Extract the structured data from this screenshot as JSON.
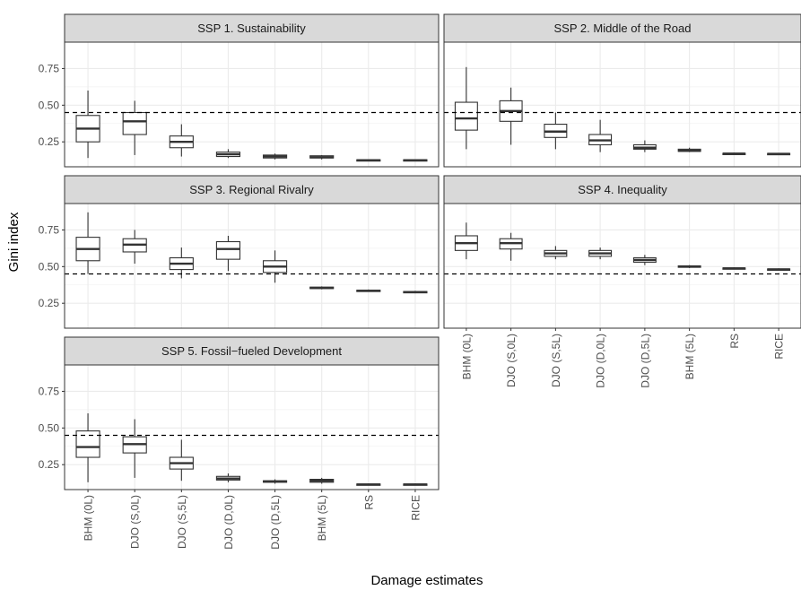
{
  "chart_data": {
    "type": "boxplot",
    "xlabel": "Damage estimates",
    "ylabel": "Gini index",
    "categories": [
      "BHM (0L)",
      "DJO (S,0L)",
      "DJO (S,5L)",
      "DJO (D,0L)",
      "DJO (D,5L)",
      "BHM (5L)",
      "RS",
      "RICE"
    ],
    "y_ticks": [
      "0.25",
      "0.50",
      "0.75"
    ],
    "ylim": [
      0.08,
      0.93
    ],
    "reference_line": 0.45,
    "grid": true,
    "panels": [
      {
        "title": "SSP 1. Sustainability",
        "boxes": [
          {
            "min": 0.14,
            "q1": 0.25,
            "median": 0.34,
            "q3": 0.43,
            "max": 0.6
          },
          {
            "min": 0.16,
            "q1": 0.3,
            "median": 0.39,
            "q3": 0.45,
            "max": 0.53
          },
          {
            "min": 0.15,
            "q1": 0.21,
            "median": 0.25,
            "q3": 0.29,
            "max": 0.37
          },
          {
            "min": 0.14,
            "q1": 0.15,
            "median": 0.165,
            "q3": 0.18,
            "max": 0.2
          },
          {
            "min": 0.13,
            "q1": 0.14,
            "median": 0.15,
            "q3": 0.16,
            "max": 0.17
          },
          {
            "min": 0.13,
            "q1": 0.14,
            "median": 0.145,
            "q3": 0.155,
            "max": 0.16
          },
          {
            "min": 0.118,
            "q1": 0.122,
            "median": 0.125,
            "q3": 0.128,
            "max": 0.132
          },
          {
            "min": 0.118,
            "q1": 0.122,
            "median": 0.125,
            "q3": 0.128,
            "max": 0.132
          }
        ]
      },
      {
        "title": "SSP 2. Middle of the Road",
        "boxes": [
          {
            "min": 0.2,
            "q1": 0.33,
            "median": 0.41,
            "q3": 0.52,
            "max": 0.76
          },
          {
            "min": 0.23,
            "q1": 0.39,
            "median": 0.46,
            "q3": 0.53,
            "max": 0.62
          },
          {
            "min": 0.2,
            "q1": 0.28,
            "median": 0.32,
            "q3": 0.37,
            "max": 0.45
          },
          {
            "min": 0.18,
            "q1": 0.23,
            "median": 0.26,
            "q3": 0.3,
            "max": 0.4
          },
          {
            "min": 0.18,
            "q1": 0.2,
            "median": 0.21,
            "q3": 0.23,
            "max": 0.26
          },
          {
            "min": 0.18,
            "q1": 0.185,
            "median": 0.19,
            "q3": 0.2,
            "max": 0.21
          },
          {
            "min": 0.165,
            "q1": 0.168,
            "median": 0.17,
            "q3": 0.172,
            "max": 0.176
          },
          {
            "min": 0.163,
            "q1": 0.166,
            "median": 0.168,
            "q3": 0.171,
            "max": 0.175
          }
        ]
      },
      {
        "title": "SSP 3. Regional Rivalry",
        "boxes": [
          {
            "min": 0.45,
            "q1": 0.54,
            "median": 0.62,
            "q3": 0.7,
            "max": 0.87
          },
          {
            "min": 0.52,
            "q1": 0.6,
            "median": 0.65,
            "q3": 0.69,
            "max": 0.75
          },
          {
            "min": 0.42,
            "q1": 0.48,
            "median": 0.52,
            "q3": 0.56,
            "max": 0.63
          },
          {
            "min": 0.47,
            "q1": 0.55,
            "median": 0.62,
            "q3": 0.67,
            "max": 0.71
          },
          {
            "min": 0.39,
            "q1": 0.46,
            "median": 0.5,
            "q3": 0.54,
            "max": 0.61
          },
          {
            "min": 0.345,
            "q1": 0.35,
            "median": 0.355,
            "q3": 0.36,
            "max": 0.365
          },
          {
            "min": 0.328,
            "q1": 0.332,
            "median": 0.335,
            "q3": 0.339,
            "max": 0.344
          },
          {
            "min": 0.318,
            "q1": 0.322,
            "median": 0.326,
            "q3": 0.33,
            "max": 0.335
          }
        ]
      },
      {
        "title": "SSP 4. Inequality",
        "boxes": [
          {
            "min": 0.55,
            "q1": 0.61,
            "median": 0.66,
            "q3": 0.71,
            "max": 0.8
          },
          {
            "min": 0.54,
            "q1": 0.62,
            "median": 0.66,
            "q3": 0.69,
            "max": 0.73
          },
          {
            "min": 0.55,
            "q1": 0.57,
            "median": 0.59,
            "q3": 0.61,
            "max": 0.64
          },
          {
            "min": 0.55,
            "q1": 0.57,
            "median": 0.59,
            "q3": 0.61,
            "max": 0.63
          },
          {
            "min": 0.51,
            "q1": 0.53,
            "median": 0.545,
            "q3": 0.56,
            "max": 0.58
          },
          {
            "min": 0.49,
            "q1": 0.495,
            "median": 0.5,
            "q3": 0.505,
            "max": 0.51
          },
          {
            "min": 0.482,
            "q1": 0.485,
            "median": 0.488,
            "q3": 0.491,
            "max": 0.495
          },
          {
            "min": 0.475,
            "q1": 0.478,
            "median": 0.481,
            "q3": 0.484,
            "max": 0.488
          }
        ]
      },
      {
        "title": "SSP 5. Fossil−fueled Development",
        "boxes": [
          {
            "min": 0.13,
            "q1": 0.3,
            "median": 0.37,
            "q3": 0.48,
            "max": 0.6
          },
          {
            "min": 0.16,
            "q1": 0.33,
            "median": 0.39,
            "q3": 0.44,
            "max": 0.56
          },
          {
            "min": 0.14,
            "q1": 0.22,
            "median": 0.26,
            "q3": 0.3,
            "max": 0.42
          },
          {
            "min": 0.13,
            "q1": 0.145,
            "median": 0.155,
            "q3": 0.17,
            "max": 0.19
          },
          {
            "min": 0.12,
            "q1": 0.13,
            "median": 0.135,
            "q3": 0.14,
            "max": 0.15
          },
          {
            "min": 0.12,
            "q1": 0.13,
            "median": 0.14,
            "q3": 0.15,
            "max": 0.16
          },
          {
            "min": 0.108,
            "q1": 0.112,
            "median": 0.115,
            "q3": 0.118,
            "max": 0.122
          },
          {
            "min": 0.108,
            "q1": 0.112,
            "median": 0.115,
            "q3": 0.118,
            "max": 0.122
          }
        ]
      }
    ]
  }
}
